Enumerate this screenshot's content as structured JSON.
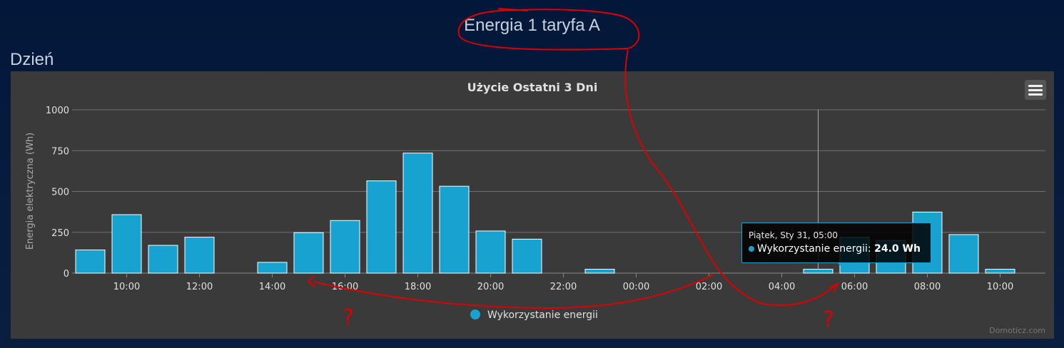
{
  "page": {
    "title": "Energia 1 taryfa A",
    "section": "Dzień"
  },
  "chart_data": {
    "type": "bar",
    "title": "Użycie Ostatni 3 Dni",
    "ylabel": "Energia elektryczna (Wh)",
    "xlabel": "",
    "ylim": [
      0,
      1000
    ],
    "yticks": [
      "0",
      "250",
      "500",
      "750",
      "1000"
    ],
    "ytick_values": [
      0,
      250,
      500,
      750,
      1000
    ],
    "xtick_labels": [
      "10:00",
      "12:00",
      "14:00",
      "16:00",
      "18:00",
      "20:00",
      "22:00",
      "00:00",
      "02:00",
      "04:00",
      "06:00",
      "08:00",
      "10:00"
    ],
    "xtick_hours": [
      10,
      12,
      14,
      16,
      18,
      20,
      22,
      24,
      26,
      28,
      30,
      32,
      34
    ],
    "hours": [
      9,
      10,
      11,
      12,
      13,
      14,
      15,
      16,
      17,
      18,
      19,
      20,
      21,
      22,
      23,
      24,
      25,
      26,
      27,
      28,
      29,
      30,
      31,
      32,
      33,
      34
    ],
    "series": [
      {
        "name": "Wykorzystanie energii",
        "color": "#17a2d0",
        "values": [
          142,
          358,
          170,
          220,
          0,
          66,
          248,
          322,
          565,
          735,
          532,
          258,
          208,
          0,
          24,
          0,
          0,
          0,
          0,
          0,
          24,
          220,
          200,
          374,
          236,
          24
        ]
      }
    ],
    "legend": "bottom-center",
    "grid": true,
    "crosshair_hour": 29
  },
  "tooltip": {
    "header": "Piątek, Sty 31, 05:00",
    "series_label": "Wykorzystanie energii:",
    "value": "24.0 Wh"
  },
  "credits": "Domoticz.com",
  "annotations": {
    "mark_left": "?",
    "mark_right": "?"
  }
}
